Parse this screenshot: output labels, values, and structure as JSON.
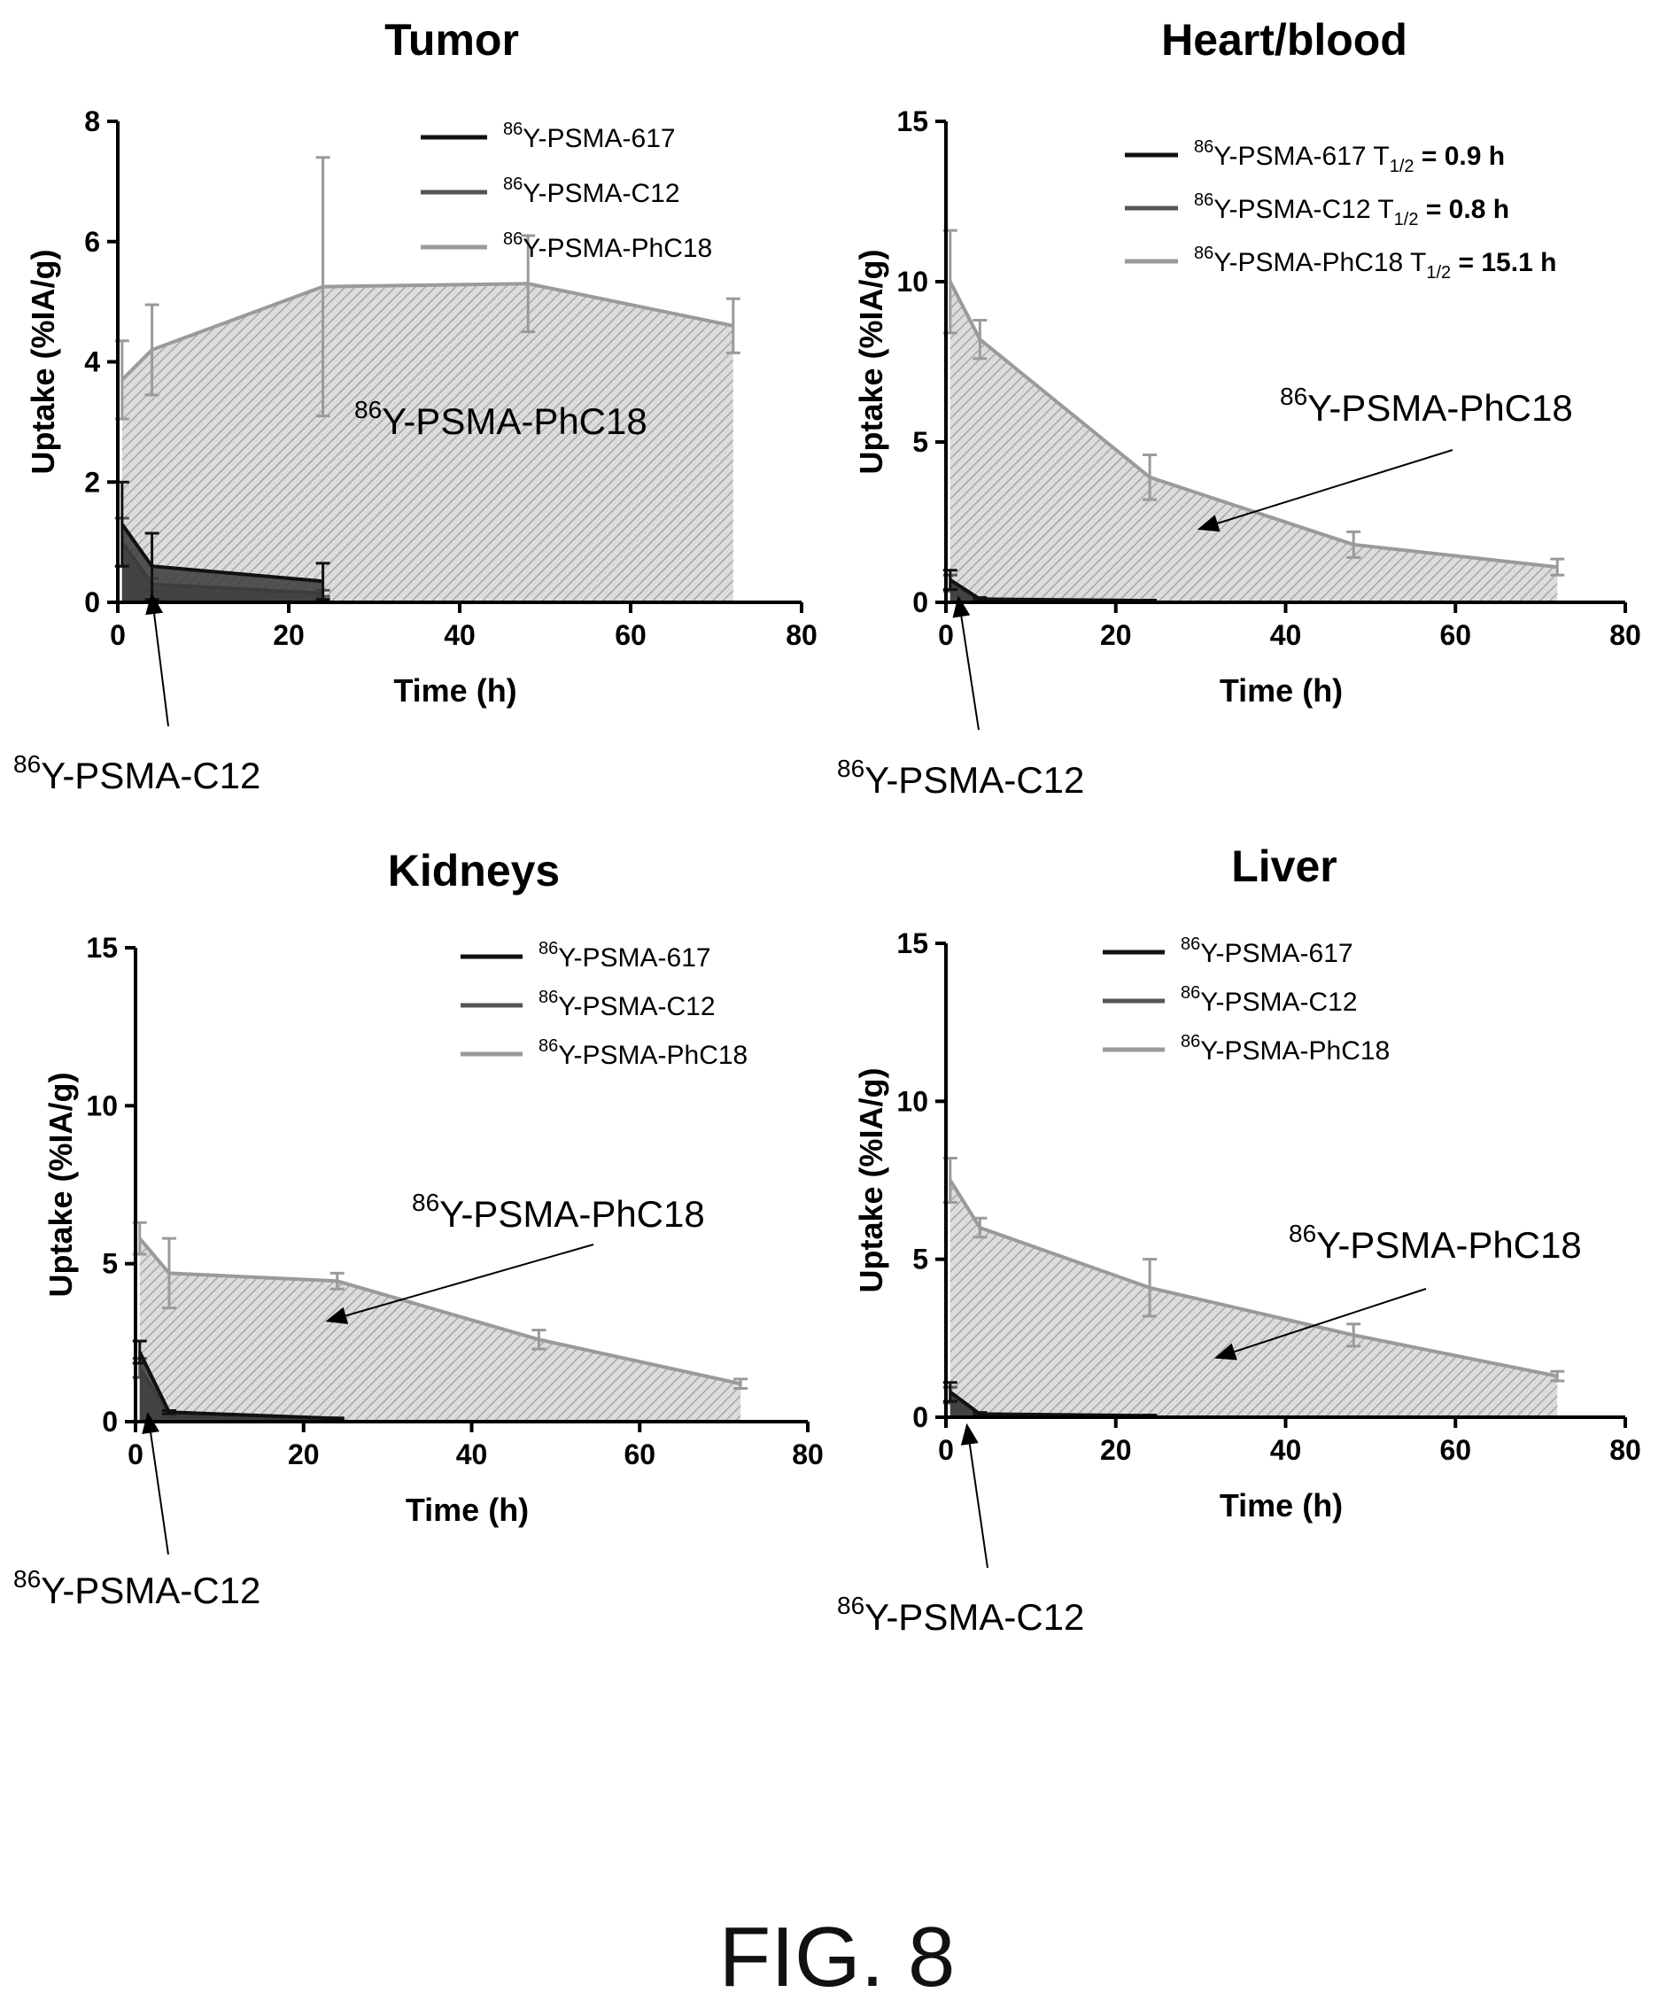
{
  "figure_label": "FIG. 8",
  "colors": {
    "psma617": "#111111",
    "psmaC12": "#555555",
    "psmaPhC18": "#9a9a9a",
    "hatch": "#a6a6a6"
  },
  "chart_data": [
    {
      "type": "area",
      "title": "Tumor",
      "xlabel": "Time (h)",
      "ylabel": "Uptake (%IA/g)",
      "xlim": [
        0,
        80
      ],
      "ylim": [
        0,
        8
      ],
      "xticks": [
        "0",
        "20",
        "40",
        "60",
        "80"
      ],
      "yticks": [
        "0",
        "2",
        "4",
        "6",
        "8"
      ],
      "legend_position": "top-right",
      "series": [
        {
          "name": "PSMA-617",
          "sup": "86",
          "prefix": "Y-",
          "legend_suffix": "",
          "legend_value": "",
          "x": [
            0.5,
            4,
            24
          ],
          "y": [
            1.3,
            0.6,
            0.35
          ],
          "err": [
            0.7,
            0.55,
            0.3
          ]
        },
        {
          "name": "PSMA-C12",
          "sup": "86",
          "prefix": "Y-",
          "legend_suffix": "",
          "legend_value": "",
          "x": [
            0.5,
            4,
            24
          ],
          "y": [
            1.0,
            0.3,
            0.15
          ],
          "err": [
            0.4,
            0.1,
            0.05
          ]
        },
        {
          "name": "PSMA-PhC18",
          "sup": "86",
          "prefix": "Y-",
          "legend_suffix": "",
          "legend_value": "",
          "x": [
            0.5,
            4,
            24,
            48,
            72
          ],
          "y": [
            3.7,
            4.2,
            5.25,
            5.3,
            4.6
          ],
          "err": [
            0.65,
            0.75,
            2.15,
            0.8,
            0.45
          ]
        }
      ],
      "annotations": [
        {
          "sup": "86",
          "text": "Y-PSMA-PhC18",
          "size": "big",
          "arrow": null
        },
        {
          "sup": "86",
          "text": "Y-PSMA-C12",
          "size": "big",
          "arrow": {
            "x": 4,
            "y": 0.1
          }
        }
      ]
    },
    {
      "type": "area",
      "title": "Heart/blood",
      "xlabel": "Time (h)",
      "ylabel": "Uptake (%IA/g)",
      "xlim": [
        0,
        80
      ],
      "ylim": [
        0,
        15
      ],
      "xticks": [
        "0",
        "20",
        "40",
        "60",
        "80"
      ],
      "yticks": [
        "0",
        "5",
        "10",
        "15"
      ],
      "legend_position": "top-right",
      "series": [
        {
          "name": "PSMA-617",
          "sup": "86",
          "prefix": "Y-",
          "legend_suffix": " T",
          "half": "1/2",
          "legend_value": "= 0.9 h",
          "x": [
            0.5,
            4,
            24
          ],
          "y": [
            0.7,
            0.1,
            0.05
          ],
          "err": [
            0.3,
            0.05,
            0.02
          ]
        },
        {
          "name": "PSMA-C12",
          "sup": "86",
          "prefix": "Y-",
          "legend_suffix": " T",
          "half": "1/2",
          "legend_value": "= 0.8 h",
          "x": [
            0.5,
            4,
            24
          ],
          "y": [
            0.6,
            0.08,
            0.04
          ],
          "err": [
            0.25,
            0.04,
            0.02
          ]
        },
        {
          "name": "PSMA-PhC18",
          "sup": "86",
          "prefix": "Y-",
          "legend_suffix": " T",
          "half": "1/2",
          "legend_value": "= 15.1 h",
          "x": [
            0.5,
            4,
            24,
            48,
            72
          ],
          "y": [
            10.0,
            8.2,
            3.9,
            1.8,
            1.1
          ],
          "err": [
            1.6,
            0.6,
            0.7,
            0.4,
            0.25
          ]
        }
      ],
      "annotations": [
        {
          "sup": "86",
          "text": "Y-PSMA-PhC18",
          "size": "big",
          "arrow": {
            "x": 30,
            "y": 2.3
          }
        },
        {
          "sup": "86",
          "text": "Y-PSMA-C12",
          "size": "big",
          "arrow": {
            "x": 1.5,
            "y": 0.1
          }
        }
      ]
    },
    {
      "type": "area",
      "title": "Kidneys",
      "xlabel": "Time (h)",
      "ylabel": "Uptake (%IA/g)",
      "xlim": [
        0,
        80
      ],
      "ylim": [
        0,
        15
      ],
      "xticks": [
        "0",
        "20",
        "40",
        "60",
        "80"
      ],
      "yticks": [
        "0",
        "5",
        "10",
        "15"
      ],
      "legend_position": "top-right",
      "series": [
        {
          "name": "PSMA-617",
          "sup": "86",
          "prefix": "Y-",
          "legend_suffix": "",
          "legend_value": "",
          "x": [
            0.5,
            4,
            24
          ],
          "y": [
            2.2,
            0.3,
            0.1
          ],
          "err": [
            0.35,
            0.05,
            0.02
          ]
        },
        {
          "name": "PSMA-C12",
          "sup": "86",
          "prefix": "Y-",
          "legend_suffix": "",
          "legend_value": "",
          "x": [
            0.5,
            4,
            24
          ],
          "y": [
            1.7,
            0.2,
            0.05
          ],
          "err": [
            0.3,
            0.05,
            0.02
          ]
        },
        {
          "name": "PSMA-PhC18",
          "sup": "86",
          "prefix": "Y-",
          "legend_suffix": "",
          "legend_value": "",
          "x": [
            0.5,
            4,
            24,
            48,
            72
          ],
          "y": [
            5.8,
            4.7,
            4.45,
            2.6,
            1.2
          ],
          "err": [
            0.5,
            1.1,
            0.25,
            0.3,
            0.15
          ]
        }
      ],
      "annotations": [
        {
          "sup": "86",
          "text": "Y-PSMA-PhC18",
          "size": "big",
          "arrow": {
            "x": 23,
            "y": 3.2
          }
        },
        {
          "sup": "86",
          "text": "Y-PSMA-C12",
          "size": "big",
          "arrow": {
            "x": 1.5,
            "y": 0.2
          }
        }
      ]
    },
    {
      "type": "area",
      "title": "Liver",
      "xlabel": "Time (h)",
      "ylabel": "Uptake (%IA/g)",
      "xlim": [
        0,
        80
      ],
      "ylim": [
        0,
        15
      ],
      "xticks": [
        "0",
        "20",
        "40",
        "60",
        "80"
      ],
      "yticks": [
        "0",
        "5",
        "10",
        "15"
      ],
      "legend_position": "top-right",
      "series": [
        {
          "name": "PSMA-617",
          "sup": "86",
          "prefix": "Y-",
          "legend_suffix": "",
          "legend_value": "",
          "x": [
            0.5,
            4,
            24
          ],
          "y": [
            0.8,
            0.1,
            0.05
          ],
          "err": [
            0.3,
            0.05,
            0.02
          ]
        },
        {
          "name": "PSMA-C12",
          "sup": "86",
          "prefix": "Y-",
          "legend_suffix": "",
          "legend_value": "",
          "x": [
            0.5,
            4,
            24
          ],
          "y": [
            0.7,
            0.08,
            0.04
          ],
          "err": [
            0.25,
            0.04,
            0.02
          ]
        },
        {
          "name": "PSMA-PhC18",
          "sup": "86",
          "prefix": "Y-",
          "legend_suffix": "",
          "legend_value": "",
          "x": [
            0.5,
            4,
            24,
            48,
            72
          ],
          "y": [
            7.5,
            6.0,
            4.1,
            2.6,
            1.3
          ],
          "err": [
            0.7,
            0.3,
            0.9,
            0.35,
            0.15
          ]
        }
      ],
      "annotations": [
        {
          "sup": "86",
          "text": "Y-PSMA-PhC18",
          "size": "big",
          "arrow": {
            "x": 32,
            "y": 1.9
          }
        },
        {
          "sup": "86",
          "text": "Y-PSMA-C12",
          "size": "big",
          "arrow": {
            "x": 2.5,
            "y": -0.3
          }
        }
      ]
    }
  ]
}
